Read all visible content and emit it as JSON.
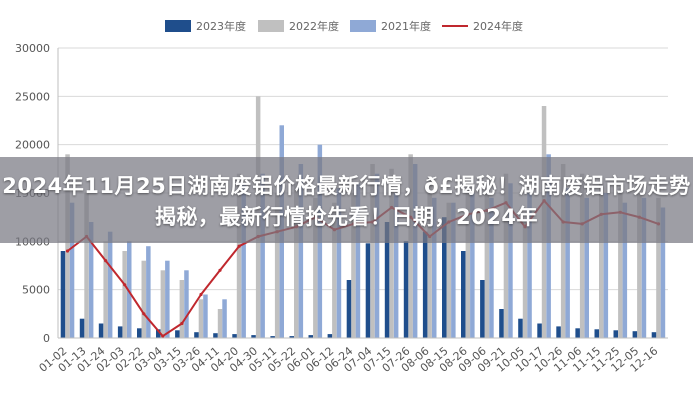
{
  "chart_data": {
    "type": "bar",
    "title": "",
    "xlabel": "",
    "ylabel": "",
    "ylim": [
      0,
      30000
    ],
    "yticks": [
      0,
      5000,
      10000,
      15000,
      20000,
      25000,
      30000
    ],
    "xticks": [
      "01-02",
      "01-13",
      "01-24",
      "02-03",
      "02-22",
      "03-04",
      "03-15",
      "03-26",
      "04-11",
      "04-20",
      "04-30",
      "05-11",
      "05-22",
      "06-01",
      "06-12",
      "06-24",
      "07-04",
      "07-15",
      "07-26",
      "08-06",
      "08-15",
      "08-26",
      "09-06",
      "09-21",
      "10-05",
      "10-17",
      "10-26",
      "11-06",
      "11-15",
      "11-25",
      "12-05",
      "12-16"
    ],
    "grid": true,
    "legend_position": "top",
    "series": [
      {
        "name": "2023年度",
        "kind": "bar",
        "color": "#1f4e8c",
        "values": [
          9000,
          2000,
          1500,
          1200,
          1000,
          900,
          800,
          600,
          500,
          400,
          300,
          200,
          200,
          300,
          400,
          6000,
          9800,
          12000,
          10000,
          11000,
          12500,
          9000,
          6000,
          3000,
          2000,
          1500,
          1200,
          1000,
          900,
          800,
          700,
          600
        ]
      },
      {
        "name": "2022年度",
        "kind": "bar",
        "color": "#c0c0c0",
        "values": [
          19000,
          15000,
          10000,
          9000,
          8000,
          7000,
          6000,
          4000,
          3000,
          17000,
          25000,
          15000,
          16000,
          14500,
          14000,
          15000,
          18000,
          17500,
          19000,
          16500,
          14000,
          15500,
          16000,
          17000,
          12000,
          24000,
          18000,
          17000,
          16000,
          15500,
          15000,
          14500
        ]
      },
      {
        "name": "2021年度",
        "kind": "bar",
        "color": "#8fa9d6",
        "values": [
          14000,
          12000,
          11000,
          10000,
          9500,
          8000,
          7000,
          4500,
          4000,
          16000,
          17000,
          22000,
          18000,
          20000,
          15500,
          16000,
          17000,
          15000,
          18000,
          14500,
          14000,
          15000,
          14500,
          16000,
          15000,
          19000,
          15500,
          14500,
          15000,
          14000,
          14500,
          13500
        ]
      },
      {
        "name": "2024年度",
        "kind": "line",
        "color": "#c0282e",
        "values": [
          9000,
          10500,
          8000,
          5500,
          2500,
          200,
          1500,
          4500,
          7000,
          9500,
          10500,
          11000,
          11500,
          12500,
          11200,
          11800,
          12000,
          13500,
          12500,
          10500,
          12000,
          12800,
          13200,
          14000,
          11500,
          14200,
          12000,
          11800,
          12800,
          13000,
          12500,
          11800
        ]
      }
    ]
  },
  "overlay": {
    "text": "2024年11月25日湖南废铝价格最新行情，ð£揭秘！湖南废铝市场走势揭秘，最新行情抢先看！日期，2024年"
  }
}
